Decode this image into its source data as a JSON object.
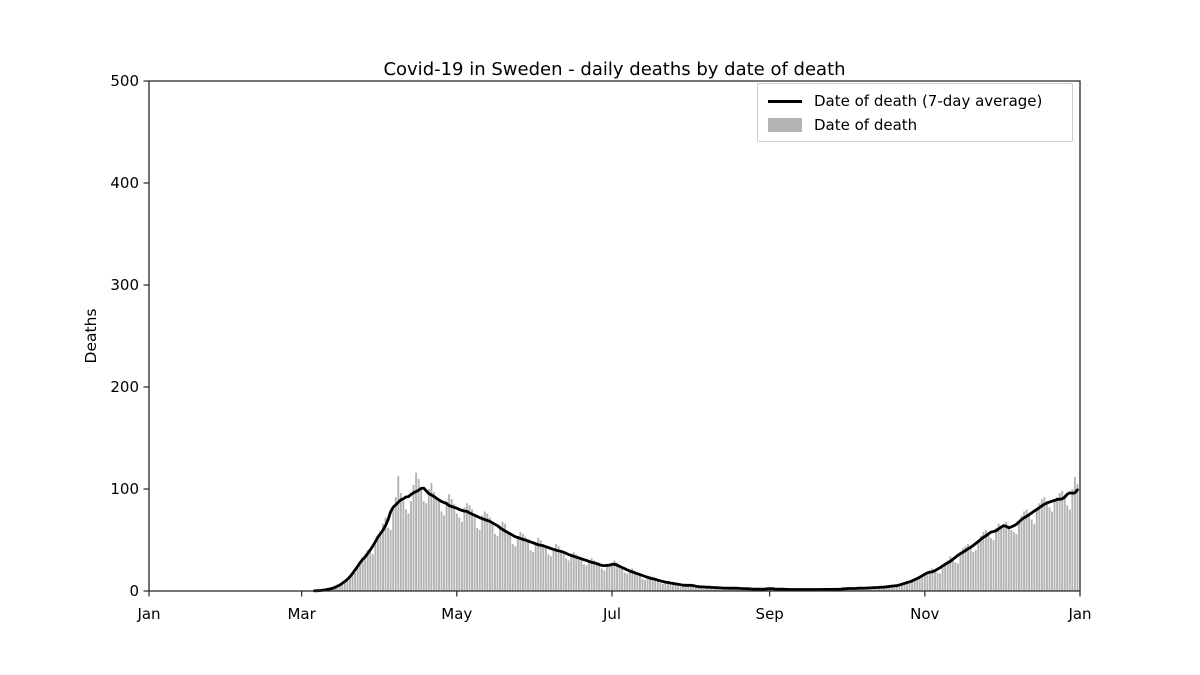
{
  "page": {
    "background": "#ffffff"
  },
  "chart_data": {
    "type": "bar+line",
    "title": "Covid-19 in Sweden - daily deaths by date of death",
    "xlabel": "",
    "ylabel": "Deaths",
    "ylim": [
      0,
      500
    ],
    "xlim_days": [
      0,
      366
    ],
    "yticks": [
      0,
      100,
      200,
      300,
      400,
      500
    ],
    "xticks": [
      {
        "label": "Jan",
        "day": 0
      },
      {
        "label": "Mar",
        "day": 60
      },
      {
        "label": "May",
        "day": 121
      },
      {
        "label": "Jul",
        "day": 182
      },
      {
        "label": "Sep",
        "day": 244
      },
      {
        "label": "Nov",
        "day": 305
      },
      {
        "label": "Jan",
        "day": 366
      }
    ],
    "grid": false,
    "legend_position": "upper right",
    "legend": [
      {
        "label": "Date of death (7-day average)",
        "swatch": "line",
        "color": "#000000"
      },
      {
        "label": "Date of death",
        "swatch": "bar",
        "color": "#b3b3b3"
      }
    ],
    "bar_color": "#b3b3b3",
    "line_color": "#000000",
    "axis_color": "#262626",
    "average_window_days": 7,
    "series": [
      {
        "name": "Date of death",
        "type": "bar"
      },
      {
        "name": "Date of death (7-day average)",
        "type": "line",
        "derived": "7-day centered moving average of daily values"
      }
    ],
    "daily_values_by_month": [
      {
        "month": "Jan",
        "values": [
          0,
          0,
          0,
          0,
          0,
          0,
          0,
          0,
          0,
          0,
          0,
          0,
          0,
          0,
          0,
          0,
          0,
          0,
          0,
          0,
          0,
          0,
          0,
          0,
          0,
          0,
          0,
          0,
          0,
          0,
          0
        ]
      },
      {
        "month": "Feb",
        "values": [
          0,
          0,
          0,
          0,
          0,
          0,
          0,
          0,
          0,
          0,
          0,
          0,
          0,
          0,
          0,
          0,
          0,
          0,
          0,
          0,
          0,
          0,
          0,
          0,
          0,
          0,
          0,
          0,
          0
        ]
      },
      {
        "month": "Mar",
        "values": [
          0,
          0,
          0,
          0,
          0,
          0,
          0,
          0,
          1,
          1,
          1,
          2,
          2,
          3,
          4,
          5,
          7,
          9,
          11,
          14,
          16,
          18,
          24,
          28,
          33,
          36,
          40,
          38,
          36,
          48,
          52
        ]
      },
      {
        "month": "Apr",
        "values": [
          58,
          66,
          72,
          62,
          60,
          80,
          92,
          113,
          96,
          88,
          80,
          76,
          88,
          104,
          116,
          110,
          100,
          88,
          86,
          100,
          106,
          97,
          92,
          90,
          78,
          74,
          88,
          95,
          90,
          85
        ]
      },
      {
        "month": "May",
        "values": [
          76,
          72,
          68,
          82,
          86,
          84,
          80,
          74,
          62,
          60,
          74,
          78,
          76,
          72,
          68,
          56,
          54,
          64,
          68,
          66,
          58,
          56,
          46,
          44,
          54,
          58,
          56,
          53,
          50,
          40,
          38
        ]
      },
      {
        "month": "Jun",
        "values": [
          48,
          52,
          50,
          46,
          44,
          36,
          34,
          42,
          46,
          44,
          40,
          38,
          32,
          30,
          36,
          38,
          36,
          34,
          32,
          26,
          25,
          30,
          32,
          30,
          28,
          26,
          22,
          20,
          24,
          26
        ]
      },
      {
        "month": "Jul",
        "values": [
          28,
          30,
          28,
          26,
          22,
          18,
          17,
          20,
          22,
          20,
          18,
          16,
          12,
          11,
          14,
          15,
          14,
          12,
          10,
          8,
          7,
          9,
          10,
          9,
          8,
          7,
          5,
          4,
          6,
          7,
          6
        ]
      },
      {
        "month": "Aug",
        "values": [
          5,
          6,
          5,
          4,
          4,
          3,
          3,
          4,
          5,
          4,
          3,
          3,
          2,
          2,
          3,
          4,
          3,
          3,
          2,
          2,
          2,
          3,
          3,
          2,
          2,
          2,
          1,
          1,
          2,
          3,
          2
        ]
      },
      {
        "month": "Sep",
        "values": [
          2,
          2,
          3,
          2,
          2,
          1,
          1,
          2,
          2,
          2,
          1,
          1,
          1,
          1,
          2,
          2,
          2,
          1,
          1,
          1,
          1,
          2,
          2,
          2,
          2,
          1,
          1,
          1,
          2,
          3
        ]
      },
      {
        "month": "Oct",
        "values": [
          2,
          3,
          3,
          2,
          2,
          2,
          3,
          3,
          4,
          3,
          3,
          2,
          3,
          4,
          4,
          5,
          4,
          4,
          3,
          5,
          6,
          6,
          7,
          6,
          8,
          9,
          10,
          12,
          11,
          13,
          15
        ]
      },
      {
        "month": "Nov",
        "values": [
          16,
          18,
          20,
          22,
          21,
          18,
          17,
          24,
          28,
          30,
          34,
          32,
          28,
          27,
          38,
          42,
          44,
          46,
          42,
          38,
          40,
          48,
          54,
          58,
          60,
          56,
          52,
          50,
          62,
          66
        ]
      },
      {
        "month": "Dec",
        "values": [
          62,
          66,
          68,
          64,
          60,
          58,
          56,
          68,
          74,
          78,
          80,
          76,
          70,
          66,
          80,
          86,
          90,
          92,
          88,
          82,
          78,
          88,
          92,
          96,
          98,
          94,
          84,
          80,
          100,
          112,
          105
        ]
      }
    ]
  }
}
